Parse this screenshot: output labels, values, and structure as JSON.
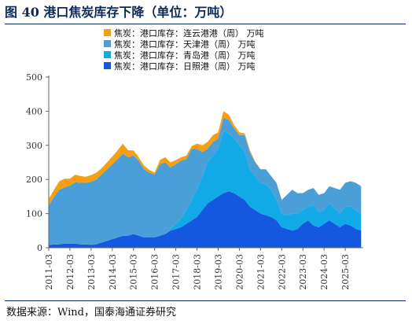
{
  "title": "图 40 港口焦炭库存下降（单位：万吨）",
  "source": "数据来源：Wind，国泰海通证券研究",
  "chart_data": {
    "type": "area",
    "stacked": true,
    "ylim": [
      0,
      500
    ],
    "yticks": [
      "0",
      "100",
      "200",
      "300",
      "400",
      "500"
    ],
    "xticks": [
      "2011-03",
      "2012-03",
      "2013-03",
      "2014-03",
      "2015-03",
      "2016-03",
      "2017-03",
      "2018-03",
      "2019-03",
      "2020-03",
      "2021-03",
      "2022-03",
      "2023-03",
      "2024-03",
      "2025-03"
    ],
    "x": [
      2011.0,
      2011.25,
      2011.5,
      2011.75,
      2012.0,
      2012.25,
      2012.5,
      2012.75,
      2013.0,
      2013.25,
      2013.5,
      2013.75,
      2014.0,
      2014.25,
      2014.5,
      2014.75,
      2015.0,
      2015.25,
      2015.5,
      2015.75,
      2016.0,
      2016.25,
      2016.5,
      2016.75,
      2017.0,
      2017.25,
      2017.5,
      2017.75,
      2018.0,
      2018.25,
      2018.5,
      2018.75,
      2019.0,
      2019.25,
      2019.5,
      2019.75,
      2020.0,
      2020.25,
      2020.5,
      2020.75,
      2021.0,
      2021.25,
      2021.5,
      2021.75,
      2022.0,
      2022.25,
      2022.5,
      2022.75,
      2023.0,
      2023.25,
      2023.5,
      2023.75,
      2024.0,
      2024.25,
      2024.5,
      2024.75,
      2025.0,
      2025.25,
      2025.5,
      2025.75
    ],
    "legend": [
      "焦炭：港口库存：连云港港（周） 万吨",
      "焦炭：港口库存：天津港（周） 万吨",
      "焦炭：港口库存：青岛港（周） 万吨",
      "焦炭：港口库存：日照港（周） 万吨"
    ],
    "series": [
      {
        "name": "焦炭：港口库存：日照港（周） 万吨",
        "color": "#1558e0",
        "values": [
          8,
          10,
          10,
          12,
          12,
          12,
          10,
          10,
          8,
          10,
          15,
          20,
          25,
          30,
          35,
          35,
          40,
          35,
          30,
          30,
          30,
          35,
          40,
          50,
          55,
          60,
          70,
          80,
          90,
          110,
          130,
          140,
          150,
          160,
          165,
          160,
          150,
          140,
          120,
          110,
          100,
          95,
          90,
          80,
          60,
          55,
          50,
          55,
          70,
          80,
          65,
          60,
          70,
          80,
          70,
          60,
          70,
          65,
          55,
          50
        ]
      },
      {
        "name": "焦炭：港口库存：青岛港（周） 万吨",
        "color": "#11a9e6",
        "values": [
          0,
          0,
          0,
          0,
          0,
          0,
          0,
          0,
          0,
          0,
          0,
          0,
          0,
          0,
          0,
          0,
          0,
          0,
          0,
          0,
          0,
          0,
          0,
          5,
          15,
          25,
          40,
          60,
          80,
          100,
          120,
          130,
          140,
          180,
          170,
          160,
          150,
          140,
          110,
          100,
          90,
          90,
          80,
          60,
          40,
          40,
          50,
          45,
          40,
          40,
          60,
          45,
          40,
          50,
          45,
          40,
          50,
          55,
          55,
          50
        ]
      },
      {
        "name": "焦炭：港口库存：天津港（周） 万吨",
        "color": "#4a9fd8",
        "values": [
          115,
          140,
          160,
          165,
          170,
          180,
          180,
          180,
          185,
          190,
          200,
          210,
          220,
          230,
          240,
          230,
          230,
          220,
          200,
          190,
          185,
          210,
          210,
          180,
          175,
          170,
          150,
          150,
          120,
          70,
          40,
          40,
          30,
          40,
          40,
          30,
          30,
          50,
          50,
          40,
          40,
          45,
          40,
          50,
          40,
          60,
          70,
          60,
          50,
          50,
          50,
          50,
          50,
          50,
          60,
          70,
          70,
          75,
          80,
          80
        ]
      },
      {
        "name": "焦炭：港口库存：连云港港（周） 万吨",
        "color": "#f5a014",
        "values": [
          20,
          20,
          25,
          25,
          20,
          22,
          20,
          18,
          20,
          20,
          18,
          20,
          22,
          25,
          30,
          20,
          15,
          10,
          10,
          8,
          5,
          12,
          15,
          15,
          12,
          10,
          10,
          8,
          15,
          20,
          20,
          20,
          18,
          20,
          15,
          10,
          8,
          5,
          5,
          2,
          0,
          0,
          0,
          0,
          0,
          0,
          0,
          0,
          0,
          0,
          0,
          0,
          0,
          0,
          0,
          0,
          0,
          0,
          0,
          0
        ]
      }
    ]
  }
}
